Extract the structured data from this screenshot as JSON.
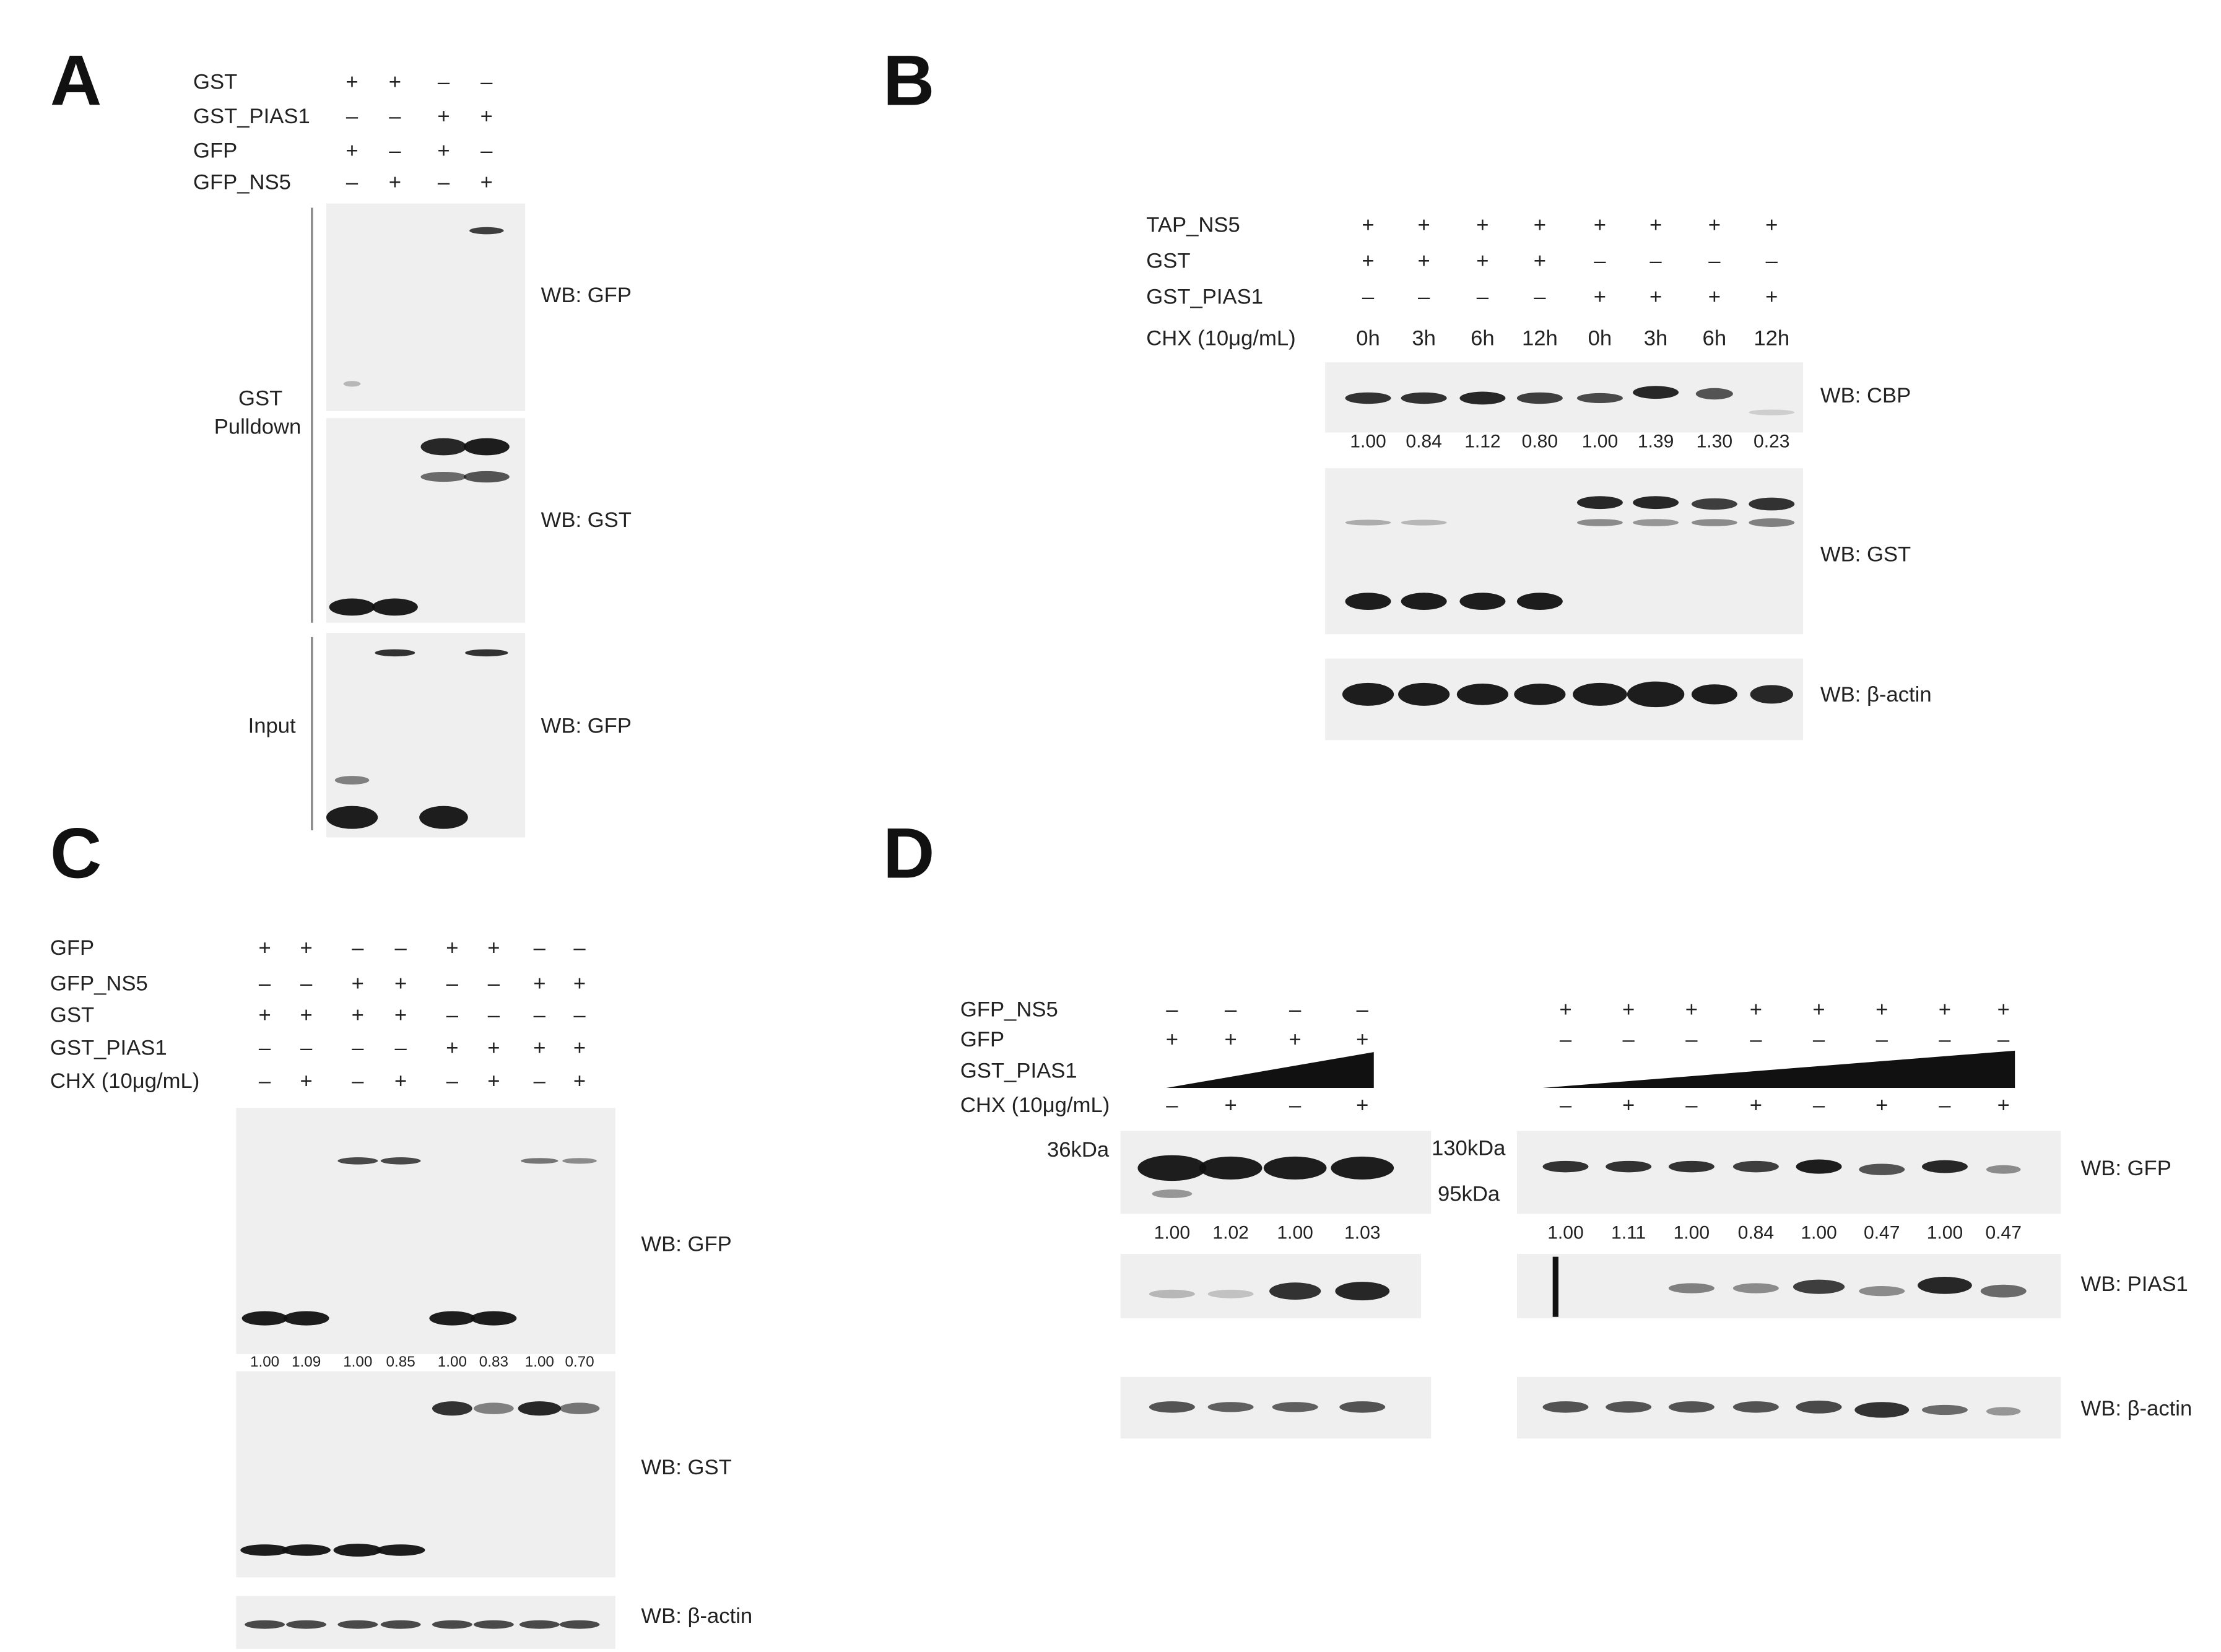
{
  "panels": [
    {
      "label": "A",
      "rows": [
        {
          "label": "GST",
          "cells": [
            "+",
            "+",
            "–",
            "–"
          ]
        },
        {
          "label": "GST_PIAS1",
          "cells": [
            "–",
            "–",
            "+",
            "+"
          ]
        },
        {
          "label": "GFP",
          "cells": [
            "+",
            "–",
            "+",
            "–"
          ]
        },
        {
          "label": "GFP_NS5",
          "cells": [
            "–",
            "+",
            "–",
            "+"
          ]
        }
      ],
      "groups": [
        {
          "lines": [
            "GST",
            "Pulldown"
          ]
        },
        {
          "lines": [
            "Input"
          ]
        }
      ],
      "blots": [
        {
          "label": "WB: GFP"
        },
        {
          "label": "WB: GST"
        },
        {
          "label": "WB: GFP"
        }
      ]
    },
    {
      "label": "B",
      "rows": [
        {
          "label": "TAP_NS5",
          "cells": [
            "+",
            "+",
            "+",
            "+",
            "+",
            "+",
            "+",
            "+"
          ]
        },
        {
          "label": "GST",
          "cells": [
            "+",
            "+",
            "+",
            "+",
            "–",
            "–",
            "–",
            "–"
          ]
        },
        {
          "label": "GST_PIAS1",
          "cells": [
            "–",
            "–",
            "–",
            "–",
            "+",
            "+",
            "+",
            "+"
          ]
        },
        {
          "label": "CHX (10μg/mL)",
          "cells": [
            "0h",
            "3h",
            "6h",
            "12h",
            "0h",
            "3h",
            "6h",
            "12h"
          ]
        }
      ],
      "blots": [
        {
          "label": "WB: CBP",
          "quantification": [
            "1.00",
            "0.84",
            "1.12",
            "0.80",
            "1.00",
            "1.39",
            "1.30",
            "0.23"
          ]
        },
        {
          "label": "WB: GST"
        },
        {
          "label": "WB: β-actin"
        }
      ]
    },
    {
      "label": "C",
      "rows": [
        {
          "label": "GFP",
          "cells": [
            "+",
            "+",
            "–",
            "–",
            "+",
            "+",
            "–",
            "–"
          ]
        },
        {
          "label": "GFP_NS5",
          "cells": [
            "–",
            "–",
            "+",
            "+",
            "–",
            "–",
            "+",
            "+"
          ]
        },
        {
          "label": "GST",
          "cells": [
            "+",
            "+",
            "+",
            "+",
            "–",
            "–",
            "–",
            "–"
          ]
        },
        {
          "label": "GST_PIAS1",
          "cells": [
            "–",
            "–",
            "–",
            "–",
            "+",
            "+",
            "+",
            "+"
          ]
        },
        {
          "label": "CHX (10μg/mL)",
          "cells": [
            "–",
            "+",
            "–",
            "+",
            "–",
            "+",
            "–",
            "+"
          ]
        }
      ],
      "blots": [
        {
          "label": "WB: GFP",
          "quantification": [
            "1.00",
            "1.09",
            "1.00",
            "0.85",
            "1.00",
            "0.83",
            "1.00",
            "0.70"
          ]
        },
        {
          "label": "WB: GST"
        },
        {
          "label": "WB: β-actin"
        }
      ]
    },
    {
      "label": "D",
      "left": {
        "rows": [
          {
            "label": "GFP_NS5",
            "cells": [
              "–",
              "–",
              "–",
              "–"
            ]
          },
          {
            "label": "GFP",
            "cells": [
              "+",
              "+",
              "+",
              "+"
            ]
          },
          {
            "label": "GST_PIAS1"
          },
          {
            "label": "CHX (10μg/mL)",
            "cells": [
              "–",
              "+",
              "–",
              "+"
            ]
          }
        ],
        "markers": [
          "36kDa"
        ],
        "quantification": [
          "1.00",
          "1.02",
          "1.00",
          "1.03"
        ]
      },
      "right": {
        "rows": [
          {
            "cells": [
              "+",
              "+",
              "+",
              "+",
              "+",
              "+",
              "+",
              "+"
            ]
          },
          {
            "cells": [
              "–",
              "–",
              "–",
              "–",
              "–",
              "–",
              "–",
              "–"
            ]
          },
          {},
          {
            "cells": [
              "–",
              "+",
              "–",
              "+",
              "–",
              "+",
              "–",
              "+"
            ]
          }
        ],
        "markers": [
          "130kDa",
          "95kDa"
        ],
        "quantification": [
          "1.00",
          "1.11",
          "1.00",
          "0.84",
          "1.00",
          "0.47",
          "1.00",
          "0.47"
        ]
      },
      "blots": [
        {
          "label": "WB: GFP"
        },
        {
          "label": "WB: PIAS1"
        },
        {
          "label": "WB: β-actin"
        }
      ]
    }
  ]
}
